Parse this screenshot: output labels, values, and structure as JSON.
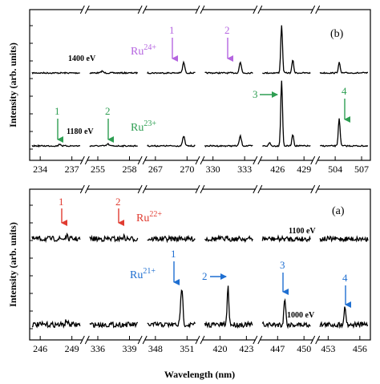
{
  "chart_data": [
    {
      "panel": "(b)",
      "type": "line",
      "ylabel": "Intensity (arb. units)",
      "xlabel": "",
      "xaxis_segments": [
        {
          "ticks": [
            234,
            237
          ],
          "range": [
            233,
            238
          ]
        },
        {
          "ticks": [
            255,
            258
          ],
          "range": [
            254,
            259
          ]
        },
        {
          "ticks": [
            267,
            270
          ],
          "range": [
            266,
            271
          ]
        },
        {
          "ticks": [
            330,
            333
          ],
          "range": [
            329,
            334
          ]
        },
        {
          "ticks": [
            426,
            429
          ],
          "range": [
            424,
            430
          ]
        },
        {
          "ticks": [
            504,
            507
          ],
          "range": [
            502,
            508
          ]
        }
      ],
      "series": [
        {
          "name": "1400 eV",
          "peaks": [
            {
              "x": 255.3,
              "y": 0.04
            },
            {
              "x": 269.8,
              "y": 0.22
            },
            {
              "x": 332.7,
              "y": 0.22
            },
            {
              "x": 426.4,
              "y": 1.0
            },
            {
              "x": 427.8,
              "y": 0.27
            },
            {
              "x": 504.4,
              "y": 0.22
            }
          ]
        },
        {
          "name": "1180 eV",
          "peaks": [
            {
              "x": 235.9,
              "y": 0.03
            },
            {
              "x": 255.9,
              "y": 0.03
            },
            {
              "x": 269.8,
              "y": 0.15
            },
            {
              "x": 332.7,
              "y": 0.15
            },
            {
              "x": 424.9,
              "y": 0.05
            },
            {
              "x": 426.4,
              "y": 1.0
            },
            {
              "x": 427.8,
              "y": 0.18
            },
            {
              "x": 504.4,
              "y": 0.42
            }
          ]
        }
      ],
      "annotations": {
        "ion_upper": {
          "base": "Ru",
          "charge": "24+"
        },
        "ion_lower": {
          "base": "Ru",
          "charge": "23+"
        },
        "upper_markers": [
          "1",
          "2"
        ],
        "lower_markers": [
          "1",
          "2",
          "3",
          "4"
        ]
      },
      "colors": {
        "upper_markers": "#b565e0",
        "lower_markers": "#2e9e52"
      }
    },
    {
      "panel": "(a)",
      "type": "line",
      "ylabel": "Intensity (arb. units)",
      "xlabel": "Wavelength (nm)",
      "xaxis_segments": [
        {
          "ticks": [
            246,
            249
          ],
          "range": [
            245,
            250
          ]
        },
        {
          "ticks": [
            336,
            339
          ],
          "range": [
            335,
            340
          ]
        },
        {
          "ticks": [
            348,
            351
          ],
          "range": [
            347,
            352
          ]
        },
        {
          "ticks": [
            420,
            423
          ],
          "range": [
            418,
            424
          ]
        },
        {
          "ticks": [
            447,
            450
          ],
          "range": [
            445,
            451
          ]
        },
        {
          "ticks": [
            453,
            456
          ],
          "range": [
            452,
            457
          ]
        }
      ],
      "series": [
        {
          "name": "1100 eV",
          "peaks": [
            {
              "x": 248.6,
              "y": 0.12
            },
            {
              "x": 338.5,
              "y": 0.1
            },
            {
              "x": 350.6,
              "y": 0.06
            },
            {
              "x": 420.9,
              "y": 0.05
            }
          ]
        },
        {
          "name": "1000 eV",
          "peaks": [
            {
              "x": 248.6,
              "y": 0.08
            },
            {
              "x": 350.6,
              "y": 0.72
            },
            {
              "x": 420.9,
              "y": 0.72
            },
            {
              "x": 447.8,
              "y": 0.52
            },
            {
              "x": 454.6,
              "y": 0.32
            }
          ]
        }
      ],
      "annotations": {
        "ion_upper": {
          "base": "Ru",
          "charge": "22+"
        },
        "ion_lower": {
          "base": "Ru",
          "charge": "21+"
        },
        "upper_markers": [
          "1",
          "2"
        ],
        "lower_markers": [
          "1",
          "2",
          "3",
          "4"
        ]
      },
      "colors": {
        "upper_markers": "#e03c31",
        "lower_markers": "#1f6fd1"
      }
    }
  ]
}
